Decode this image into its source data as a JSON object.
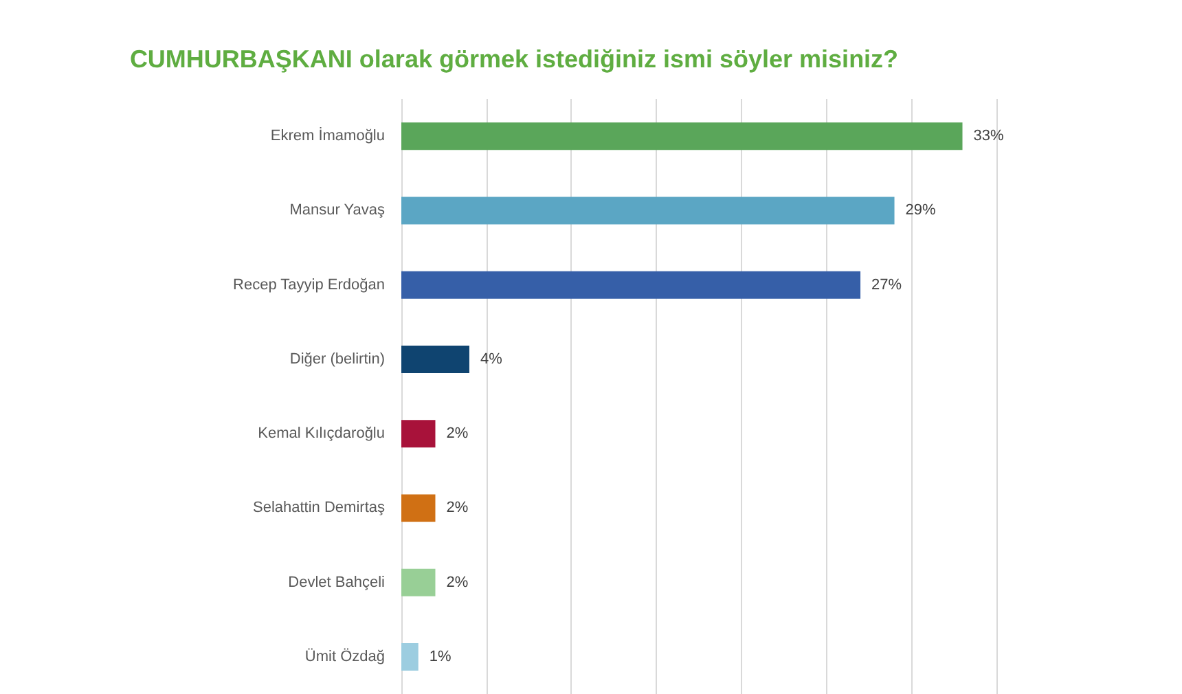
{
  "chart_data": {
    "type": "bar",
    "orientation": "horizontal",
    "title": "CUMHURBAŞKANI olarak görmek istediğiniz ismi söyler misiniz?",
    "categories": [
      "Ekrem İmamoğlu",
      "Mansur Yavaş",
      "Recep Tayyip Erdoğan",
      "Diğer (belirtin)",
      "Kemal Kılıçdaroğlu",
      "Selahattin Demirtaş",
      "Devlet Bahçeli",
      "Ümit Özdağ"
    ],
    "values": [
      33,
      29,
      27,
      4,
      2,
      2,
      2,
      1
    ],
    "value_labels": [
      "33%",
      "29%",
      "27%",
      "4%",
      "2%",
      "2%",
      "2%",
      "1%"
    ],
    "colors": [
      "#5aa65a",
      "#5ba6c4",
      "#365fa8",
      "#0f4470",
      "#a8123a",
      "#d07014",
      "#98cf96",
      "#9ccde0"
    ],
    "xlim": [
      0,
      35
    ],
    "xticks": [
      {
        "value": 0,
        "label": null
      },
      {
        "value": 5,
        "label": null
      },
      {
        "value": 10,
        "label": null
      },
      {
        "value": 15,
        "label": null
      },
      {
        "value": 20,
        "label": null
      },
      {
        "value": 25,
        "label": null
      },
      {
        "value": 30,
        "label": null
      },
      {
        "value": 35,
        "label": null
      }
    ],
    "grid": "x",
    "tick_labels": "y"
  }
}
